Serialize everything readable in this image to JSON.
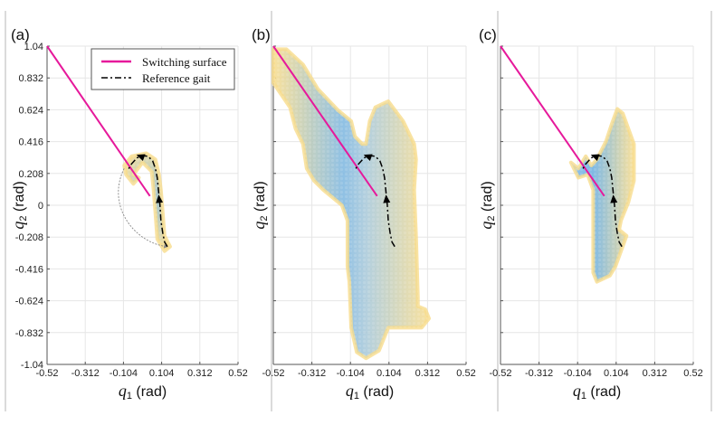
{
  "chart_data": [
    {
      "type": "scatter",
      "panel": "(a)",
      "xlabel": "q1 (rad)",
      "ylabel": "q2 (rad)",
      "xlim": [
        -0.52,
        0.52
      ],
      "ylim": [
        -1.04,
        1.04
      ],
      "xticks": [
        "-0.52",
        "-0.312",
        "-0.104",
        "0.104",
        "0.312",
        "0.52"
      ],
      "yticks": [
        "1.04",
        "0.832",
        "0.624",
        "0.416",
        "0.208",
        "0",
        "-0.208",
        "-0.416",
        "-0.624",
        "-0.832",
        "-1.04"
      ],
      "grid": true,
      "legend": {
        "placement": "top-right",
        "entries": [
          "Switching surface",
          "Reference gait"
        ]
      },
      "region": [
        [
          -0.1,
          0.26
        ],
        [
          -0.06,
          0.32
        ],
        [
          0.02,
          0.34
        ],
        [
          0.07,
          0.3
        ],
        [
          0.09,
          0.2
        ],
        [
          0.1,
          0.1
        ],
        [
          0.11,
          -0.05
        ],
        [
          0.12,
          -0.2
        ],
        [
          0.15,
          -0.27
        ],
        [
          0.12,
          -0.3
        ],
        [
          0.08,
          -0.22
        ],
        [
          0.07,
          -0.05
        ],
        [
          0.06,
          0.1
        ],
        [
          0.05,
          0.22
        ],
        [
          0.0,
          0.28
        ],
        [
          -0.05,
          0.2
        ],
        [
          -0.02,
          0.18
        ],
        [
          -0.05,
          0.14
        ],
        [
          -0.09,
          0.2
        ]
      ],
      "impact_arc": {
        "from": [
          -0.1,
          0.24
        ],
        "to": [
          0.13,
          -0.27
        ]
      }
    },
    {
      "type": "scatter",
      "panel": "(b)",
      "xlabel": "q1 (rad)",
      "ylabel": "q2 (rad)",
      "xlim": [
        -0.52,
        0.52
      ],
      "ylim": [
        -1.04,
        1.04
      ],
      "xticks": [
        "-0.52",
        "-0.312",
        "-0.104",
        "0.104",
        "0.312",
        "0.52"
      ],
      "yticks": [],
      "grid": true,
      "region": [
        [
          -0.52,
          1.02
        ],
        [
          -0.45,
          1.02
        ],
        [
          -0.36,
          0.92
        ],
        [
          -0.28,
          0.76
        ],
        [
          -0.17,
          0.62
        ],
        [
          -0.1,
          0.55
        ],
        [
          -0.08,
          0.45
        ],
        [
          -0.04,
          0.4
        ],
        [
          -0.02,
          0.4
        ],
        [
          0.0,
          0.55
        ],
        [
          0.03,
          0.64
        ],
        [
          0.1,
          0.68
        ],
        [
          0.18,
          0.55
        ],
        [
          0.24,
          0.4
        ],
        [
          0.25,
          0.3
        ],
        [
          0.24,
          0.1
        ],
        [
          0.25,
          -0.2
        ],
        [
          0.26,
          -0.6
        ],
        [
          0.26,
          -0.66
        ],
        [
          0.3,
          -0.68
        ],
        [
          0.32,
          -0.74
        ],
        [
          0.28,
          -0.8
        ],
        [
          0.1,
          -0.8
        ],
        [
          0.05,
          -0.95
        ],
        [
          -0.02,
          -1.0
        ],
        [
          -0.07,
          -0.96
        ],
        [
          -0.1,
          -0.8
        ],
        [
          -0.11,
          -0.5
        ],
        [
          -0.12,
          -0.4
        ],
        [
          -0.12,
          -0.1
        ],
        [
          -0.15,
          0.0
        ],
        [
          -0.25,
          0.1
        ],
        [
          -0.3,
          0.16
        ],
        [
          -0.34,
          0.24
        ],
        [
          -0.36,
          0.4
        ],
        [
          -0.4,
          0.5
        ],
        [
          -0.43,
          0.64
        ],
        [
          -0.52,
          0.8
        ]
      ]
    },
    {
      "type": "scatter",
      "panel": "(c)",
      "xlabel": "q1 (rad)",
      "ylabel": "q2 (rad)",
      "xlim": [
        -0.52,
        0.52
      ],
      "ylim": [
        -1.04,
        1.04
      ],
      "xticks": [
        "-0.52",
        "-0.312",
        "-0.104",
        "0.104",
        "0.312",
        "0.52"
      ],
      "yticks": [],
      "grid": true,
      "region": [
        [
          -0.14,
          0.28
        ],
        [
          -0.1,
          0.24
        ],
        [
          -0.06,
          0.32
        ],
        [
          -0.03,
          0.26
        ],
        [
          0.0,
          0.3
        ],
        [
          0.05,
          0.42
        ],
        [
          0.08,
          0.53
        ],
        [
          0.11,
          0.63
        ],
        [
          0.14,
          0.6
        ],
        [
          0.17,
          0.5
        ],
        [
          0.2,
          0.4
        ],
        [
          0.2,
          0.16
        ],
        [
          0.17,
          0.02
        ],
        [
          0.13,
          -0.1
        ],
        [
          0.12,
          -0.16
        ],
        [
          0.16,
          -0.2
        ],
        [
          0.13,
          -0.3
        ],
        [
          0.1,
          -0.4
        ],
        [
          0.07,
          -0.46
        ],
        [
          0.0,
          -0.5
        ],
        [
          -0.02,
          -0.44
        ],
        [
          -0.02,
          -0.2
        ],
        [
          -0.02,
          0.1
        ],
        [
          -0.05,
          0.2
        ],
        [
          -0.1,
          0.18
        ]
      ]
    }
  ],
  "shared": {
    "switching_surface": {
      "label": "Switching surface",
      "color": "#e6199b",
      "points": [
        [
          -0.52,
          1.04
        ],
        [
          0.04,
          0.06
        ]
      ]
    },
    "reference_gait": {
      "label": "Reference gait",
      "color": "#000000",
      "points": [
        [
          0.135,
          -0.27
        ],
        [
          0.12,
          -0.24
        ],
        [
          0.11,
          -0.18
        ],
        [
          0.1,
          -0.1
        ],
        [
          0.095,
          0.0
        ],
        [
          0.09,
          0.06
        ],
        [
          0.085,
          0.12
        ],
        [
          0.08,
          0.18
        ],
        [
          0.07,
          0.24
        ],
        [
          0.055,
          0.29
        ],
        [
          0.03,
          0.32
        ],
        [
          0.0,
          0.325
        ],
        [
          -0.03,
          0.31
        ],
        [
          -0.06,
          0.27
        ],
        [
          -0.08,
          0.23
        ]
      ],
      "arrows": [
        [
          0.09,
          0.04
        ],
        [
          -0.01,
          0.32
        ]
      ]
    },
    "colors": {
      "region_outer": "#f8dc8c",
      "region_inner": "#6aaee0",
      "grid": "#e6e6e6",
      "axis": "#555555"
    }
  },
  "labels": {
    "panel_a": "(a)",
    "panel_b": "(b)",
    "panel_c": "(c)",
    "q1": "q",
    "q1_sub": "1",
    "q2": "q",
    "q2_sub": "2",
    "rad": " (rad)",
    "legend_switching": "Switching surface",
    "legend_gait": "Reference gait"
  }
}
